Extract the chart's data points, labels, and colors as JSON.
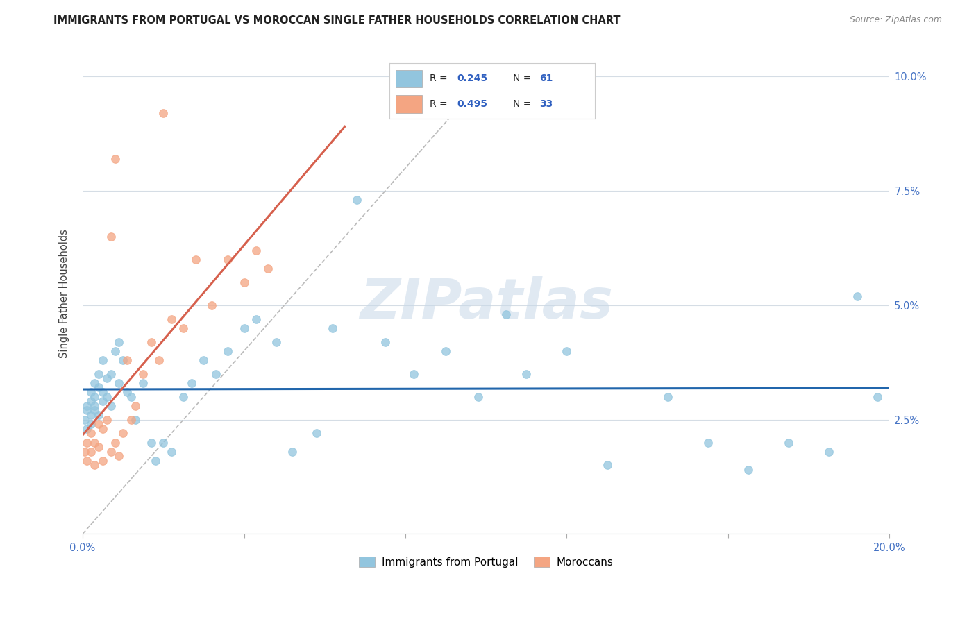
{
  "title": "IMMIGRANTS FROM PORTUGAL VS MOROCCAN SINGLE FATHER HOUSEHOLDS CORRELATION CHART",
  "source": "Source: ZipAtlas.com",
  "ylabel": "Single Father Households",
  "xlim": [
    0.0,
    0.2
  ],
  "ylim": [
    0.0,
    0.105
  ],
  "xtick_positions": [
    0.0,
    0.04,
    0.08,
    0.12,
    0.16,
    0.2
  ],
  "xticklabels": [
    "0.0%",
    "",
    "",
    "",
    "",
    "20.0%"
  ],
  "ytick_positions": [
    0.0,
    0.025,
    0.05,
    0.075,
    0.1
  ],
  "yticklabels": [
    "",
    "2.5%",
    "5.0%",
    "7.5%",
    "10.0%"
  ],
  "color_blue": "#92c5de",
  "color_pink": "#f4a582",
  "color_line_blue": "#2166ac",
  "color_line_pink": "#d6604d",
  "color_diag": "#bbbbbb",
  "watermark": "ZIPatlas",
  "portugal_x": [
    0.0005,
    0.001,
    0.001,
    0.001,
    0.002,
    0.002,
    0.002,
    0.002,
    0.003,
    0.003,
    0.003,
    0.003,
    0.004,
    0.004,
    0.004,
    0.005,
    0.005,
    0.005,
    0.006,
    0.006,
    0.007,
    0.007,
    0.008,
    0.009,
    0.009,
    0.01,
    0.011,
    0.012,
    0.013,
    0.015,
    0.017,
    0.018,
    0.02,
    0.022,
    0.025,
    0.027,
    0.03,
    0.033,
    0.036,
    0.04,
    0.043,
    0.048,
    0.052,
    0.058,
    0.062,
    0.068,
    0.075,
    0.082,
    0.09,
    0.098,
    0.105,
    0.11,
    0.12,
    0.13,
    0.145,
    0.155,
    0.165,
    0.175,
    0.185,
    0.192,
    0.197
  ],
  "portugal_y": [
    0.025,
    0.027,
    0.023,
    0.028,
    0.026,
    0.029,
    0.024,
    0.031,
    0.03,
    0.027,
    0.033,
    0.028,
    0.035,
    0.026,
    0.032,
    0.029,
    0.031,
    0.038,
    0.03,
    0.034,
    0.035,
    0.028,
    0.04,
    0.033,
    0.042,
    0.038,
    0.031,
    0.03,
    0.025,
    0.033,
    0.02,
    0.016,
    0.02,
    0.018,
    0.03,
    0.033,
    0.038,
    0.035,
    0.04,
    0.045,
    0.047,
    0.042,
    0.018,
    0.022,
    0.045,
    0.073,
    0.042,
    0.035,
    0.04,
    0.03,
    0.048,
    0.035,
    0.04,
    0.015,
    0.03,
    0.02,
    0.014,
    0.02,
    0.018,
    0.052,
    0.03
  ],
  "morocco_x": [
    0.0005,
    0.001,
    0.001,
    0.002,
    0.002,
    0.003,
    0.003,
    0.004,
    0.004,
    0.005,
    0.005,
    0.006,
    0.007,
    0.008,
    0.009,
    0.01,
    0.011,
    0.012,
    0.013,
    0.015,
    0.017,
    0.019,
    0.022,
    0.025,
    0.028,
    0.032,
    0.036,
    0.04,
    0.043,
    0.046,
    0.02,
    0.007,
    0.008
  ],
  "morocco_y": [
    0.018,
    0.02,
    0.016,
    0.022,
    0.018,
    0.02,
    0.015,
    0.024,
    0.019,
    0.023,
    0.016,
    0.025,
    0.018,
    0.02,
    0.017,
    0.022,
    0.038,
    0.025,
    0.028,
    0.035,
    0.042,
    0.038,
    0.047,
    0.045,
    0.06,
    0.05,
    0.06,
    0.055,
    0.062,
    0.058,
    0.092,
    0.065,
    0.082
  ]
}
